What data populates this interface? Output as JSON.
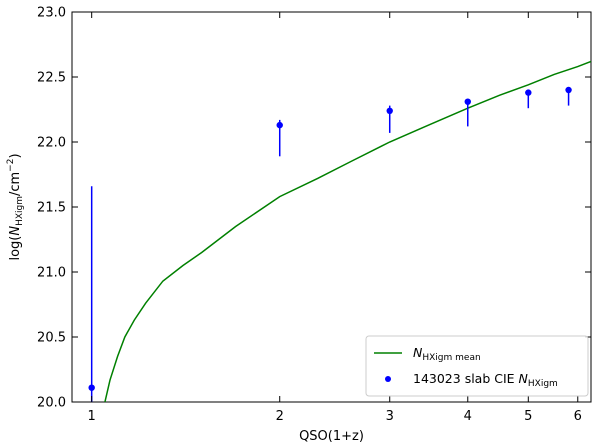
{
  "chart_data": {
    "type": "scatter",
    "xlabel": "QSO(1+z)",
    "ylabel": {
      "prefix": "log(",
      "symbol": "N",
      "subscript": "HXigm",
      "unit_prefix": "/cm",
      "unit_exponent": "−2",
      "suffix": ")"
    },
    "xscale": "log",
    "xlim": [
      0.93,
      6.3
    ],
    "ylim": [
      20.0,
      23.0
    ],
    "xticks": [
      {
        "value": 1,
        "label": "1"
      },
      {
        "value": 2,
        "label": "2"
      },
      {
        "value": 3,
        "label": "3"
      },
      {
        "value": 4,
        "label": "4"
      },
      {
        "value": 5,
        "label": "5"
      },
      {
        "value": 6,
        "label": "6"
      }
    ],
    "yticks": [
      {
        "value": 20.0,
        "label": "20.0"
      },
      {
        "value": 20.5,
        "label": "20.5"
      },
      {
        "value": 21.0,
        "label": "21.0"
      },
      {
        "value": 21.5,
        "label": "21.5"
      },
      {
        "value": 22.0,
        "label": "22.0"
      },
      {
        "value": 22.5,
        "label": "22.5"
      },
      {
        "value": 23.0,
        "label": "23.0"
      }
    ],
    "grid": false,
    "legend_placement": "lower-right",
    "series": [
      {
        "label": {
          "symbol": "N",
          "subscript": "HXigm mean"
        },
        "kind": "line",
        "color": "#008000",
        "x": [
          1.05,
          1.07,
          1.1,
          1.13,
          1.17,
          1.22,
          1.3,
          1.4,
          1.5,
          1.7,
          2.0,
          2.3,
          2.6,
          3.0,
          3.5,
          4.0,
          4.5,
          5.0,
          5.5,
          6.0,
          6.3
        ],
        "y": [
          20.0,
          20.17,
          20.35,
          20.5,
          20.63,
          20.76,
          20.93,
          21.05,
          21.15,
          21.35,
          21.58,
          21.72,
          21.85,
          22.0,
          22.14,
          22.26,
          22.36,
          22.44,
          22.52,
          22.58,
          22.62
        ]
      },
      {
        "label": {
          "prefix": "143023 slab CIE ",
          "symbol": "N",
          "subscript": "HXigm"
        },
        "kind": "points_with_errorbars",
        "color": "#0000ff",
        "points": [
          {
            "x": 1.0,
            "y": 20.11,
            "y_low": 20.0,
            "y_high": 21.66
          },
          {
            "x": 2.0,
            "y": 22.13,
            "y_low": 21.89,
            "y_high": 22.17
          },
          {
            "x": 3.0,
            "y": 22.24,
            "y_low": 22.07,
            "y_high": 22.28
          },
          {
            "x": 4.0,
            "y": 22.31,
            "y_low": 22.12,
            "y_high": 22.33
          },
          {
            "x": 5.0,
            "y": 22.38,
            "y_low": 22.26,
            "y_high": 22.39
          },
          {
            "x": 5.8,
            "y": 22.4,
            "y_low": 22.28,
            "y_high": 22.42
          }
        ]
      }
    ]
  }
}
